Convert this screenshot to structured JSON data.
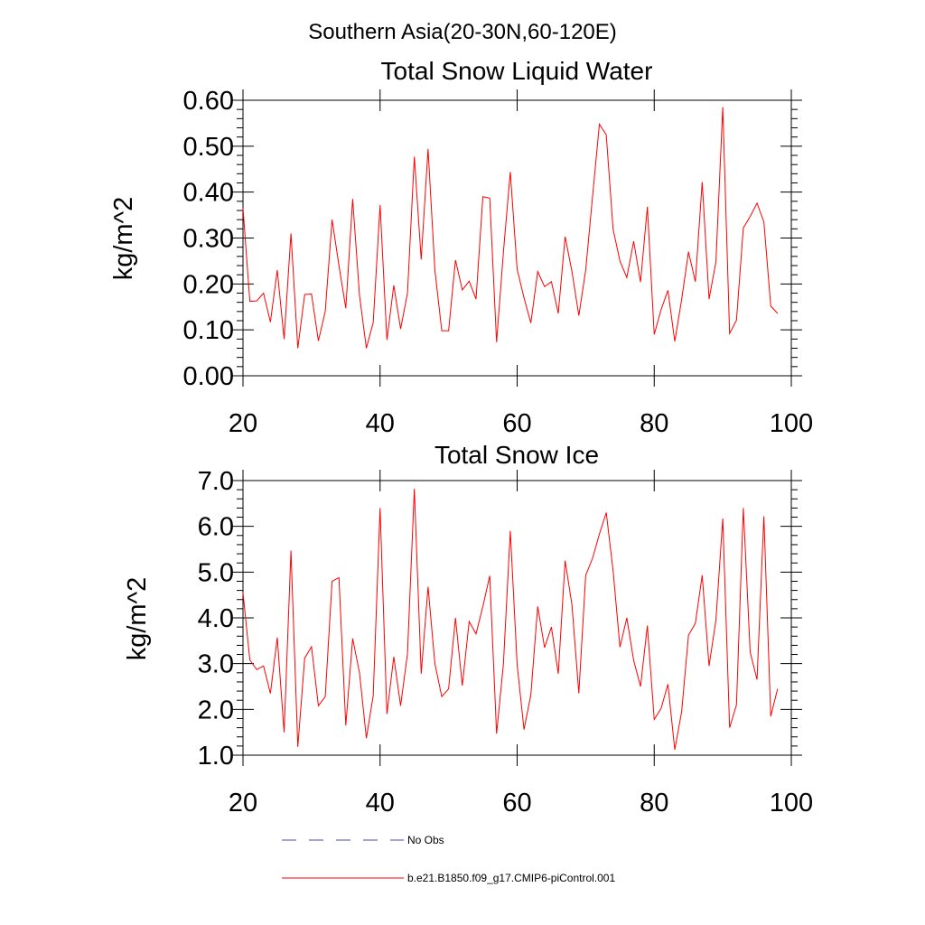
{
  "figure": {
    "main_title": "Southern Asia(20-30N,60-120E)"
  },
  "colors": {
    "series": "#ff0000",
    "obs": "#4a4aa8",
    "axis": "#000000"
  },
  "legend": {
    "obs_label": "No Obs",
    "model_label": "b.e21.B1850.f09_g17.CMIP6-piControl.001"
  },
  "chart_data": [
    {
      "type": "line",
      "title": "Total Snow Liquid Water",
      "xlabel": "",
      "ylabel": "kg/m^2",
      "xlim": [
        20,
        100
      ],
      "ylim": [
        0,
        0.6
      ],
      "xticks": [
        20,
        40,
        60,
        80,
        100
      ],
      "xtick_labels": [
        "20",
        "40",
        "60",
        "80",
        "100"
      ],
      "yticks": [
        0,
        0.1,
        0.2,
        0.3,
        0.4,
        0.5,
        0.6
      ],
      "ytick_labels": [
        "0.00",
        "0.10",
        "0.20",
        "0.30",
        "0.40",
        "0.50",
        "0.60"
      ],
      "grid": false,
      "series": [
        {
          "name": "b.e21.B1850.f09_g17.CMIP6-piControl.001",
          "x": [
            20,
            21,
            22,
            23,
            24,
            25,
            26,
            27,
            28,
            29,
            30,
            31,
            32,
            33,
            34,
            35,
            36,
            37,
            38,
            39,
            40,
            41,
            42,
            43,
            44,
            45,
            46,
            47,
            48,
            49,
            50,
            51,
            52,
            53,
            54,
            55,
            56,
            57,
            58,
            59,
            60,
            61,
            62,
            63,
            64,
            65,
            66,
            67,
            68,
            69,
            70,
            71,
            72,
            73,
            74,
            75,
            76,
            77,
            78,
            79,
            80,
            81,
            82,
            83,
            84,
            85,
            86,
            87,
            88,
            89,
            90,
            91,
            92,
            93,
            94,
            95,
            96,
            97,
            98
          ],
          "y": [
            0.365,
            0.162,
            0.163,
            0.18,
            0.117,
            0.23,
            0.08,
            0.31,
            0.06,
            0.177,
            0.178,
            0.076,
            0.14,
            0.34,
            0.24,
            0.147,
            0.385,
            0.175,
            0.06,
            0.116,
            0.372,
            0.078,
            0.197,
            0.102,
            0.18,
            0.477,
            0.253,
            0.494,
            0.23,
            0.098,
            0.098,
            0.252,
            0.187,
            0.206,
            0.167,
            0.39,
            0.387,
            0.073,
            0.27,
            0.444,
            0.232,
            0.17,
            0.115,
            0.227,
            0.194,
            0.205,
            0.136,
            0.303,
            0.227,
            0.131,
            0.23,
            0.39,
            0.548,
            0.525,
            0.319,
            0.25,
            0.214,
            0.293,
            0.204,
            0.368,
            0.09,
            0.144,
            0.186,
            0.075,
            0.166,
            0.27,
            0.205,
            0.422,
            0.167,
            0.248,
            0.585,
            0.092,
            0.121,
            0.322,
            0.347,
            0.376,
            0.335,
            0.152,
            0.136
          ]
        }
      ]
    },
    {
      "type": "line",
      "title": "Total Snow Ice",
      "xlabel": "",
      "ylabel": "kg/m^2",
      "xlim": [
        20,
        100
      ],
      "ylim": [
        1.0,
        7.0
      ],
      "xticks": [
        20,
        40,
        60,
        80,
        100
      ],
      "xtick_labels": [
        "20",
        "40",
        "60",
        "80",
        "100"
      ],
      "yticks": [
        1,
        2,
        3,
        4,
        5,
        6,
        7
      ],
      "ytick_labels": [
        "1.0",
        "2.0",
        "3.0",
        "4.0",
        "5.0",
        "6.0",
        "7.0"
      ],
      "grid": false,
      "series": [
        {
          "name": "b.e21.B1850.f09_g17.CMIP6-piControl.001",
          "x": [
            20,
            21,
            22,
            23,
            24,
            25,
            26,
            27,
            28,
            29,
            30,
            31,
            32,
            33,
            34,
            35,
            36,
            37,
            38,
            39,
            40,
            41,
            42,
            43,
            44,
            45,
            46,
            47,
            48,
            49,
            50,
            51,
            52,
            53,
            54,
            55,
            56,
            57,
            58,
            59,
            60,
            61,
            62,
            63,
            64,
            65,
            66,
            67,
            68,
            69,
            70,
            71,
            72,
            73,
            74,
            75,
            76,
            77,
            78,
            79,
            80,
            81,
            82,
            83,
            84,
            85,
            86,
            87,
            88,
            89,
            90,
            91,
            92,
            93,
            94,
            95,
            96,
            97,
            98
          ],
          "y": [
            4.55,
            3.08,
            2.87,
            2.95,
            2.35,
            3.57,
            1.5,
            5.47,
            1.18,
            3.12,
            3.37,
            2.08,
            2.28,
            4.8,
            4.88,
            1.65,
            3.55,
            2.8,
            1.37,
            2.3,
            6.4,
            1.9,
            3.15,
            2.08,
            3.22,
            6.82,
            2.78,
            4.68,
            3.0,
            2.28,
            2.45,
            4.0,
            2.52,
            3.92,
            3.65,
            4.25,
            4.92,
            1.47,
            3.0,
            5.9,
            2.98,
            1.56,
            2.32,
            4.25,
            3.35,
            3.8,
            2.78,
            5.25,
            4.28,
            2.35,
            4.93,
            5.3,
            5.83,
            6.3,
            5.03,
            3.36,
            4.0,
            3.07,
            2.5,
            3.83,
            1.78,
            2.02,
            2.55,
            1.12,
            1.95,
            3.62,
            3.88,
            4.93,
            2.95,
            3.95,
            6.17,
            1.6,
            2.1,
            6.4,
            3.25,
            2.65,
            6.22,
            1.85,
            2.45
          ]
        }
      ]
    }
  ]
}
